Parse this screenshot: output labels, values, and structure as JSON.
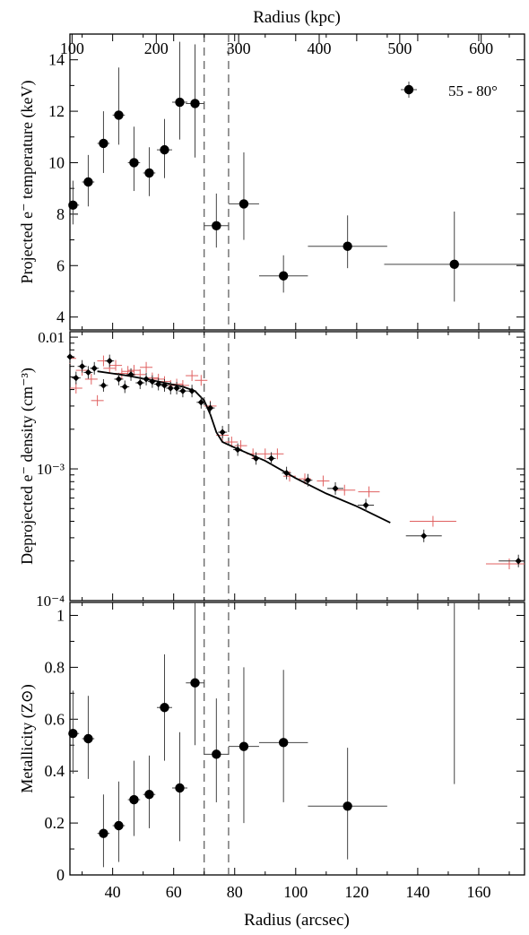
{
  "chart_data": {
    "type": "scatter",
    "shared_x": {
      "label": "Radius (arcsec)",
      "range": [
        26,
        175
      ],
      "ticks": [
        40,
        60,
        80,
        100,
        120,
        140,
        160
      ]
    },
    "top_axis": {
      "label": "Radius (kpc)",
      "ticks": [
        {
          "kpc": 100,
          "arcsec": 26.7
        },
        {
          "kpc": 200,
          "arcsec": 54.3
        },
        {
          "kpc": 300,
          "arcsec": 81.3
        },
        {
          "kpc": 400,
          "arcsec": 107.7
        },
        {
          "kpc": 500,
          "arcsec": 134.1
        },
        {
          "kpc": 600,
          "arcsec": 160.8
        }
      ]
    },
    "vertical_dashed_lines": [
      70,
      78
    ],
    "panels": [
      {
        "id": "temperature",
        "ylabel": "Projected e⁻ temperature (keV)",
        "yscale": "linear",
        "ylim": [
          3.5,
          15
        ],
        "yticks": [
          4,
          6,
          8,
          10,
          12,
          14
        ],
        "legend": {
          "label": "55 - 80°",
          "position": "top-right"
        },
        "points": [
          {
            "x": 27,
            "xerr": 2,
            "y": 8.35,
            "ylo": 7.6,
            "yhi": 9.3
          },
          {
            "x": 32,
            "xerr": 2,
            "y": 9.25,
            "ylo": 8.3,
            "yhi": 10.3
          },
          {
            "x": 37,
            "xerr": 2,
            "y": 10.75,
            "ylo": 9.6,
            "yhi": 12.0
          },
          {
            "x": 42,
            "xerr": 2,
            "y": 11.85,
            "ylo": 10.7,
            "yhi": 13.7
          },
          {
            "x": 47,
            "xerr": 2,
            "y": 10.0,
            "ylo": 8.9,
            "yhi": 11.4
          },
          {
            "x": 52,
            "xerr": 2,
            "y": 9.6,
            "ylo": 8.7,
            "yhi": 10.6
          },
          {
            "x": 57,
            "xerr": 2.5,
            "y": 10.5,
            "ylo": 9.4,
            "yhi": 11.7
          },
          {
            "x": 62,
            "xerr": 2.5,
            "y": 12.35,
            "ylo": 10.9,
            "yhi": 14.7
          },
          {
            "x": 67,
            "xerr": 3,
            "y": 12.3,
            "ylo": 10.2,
            "yhi": 14.6
          },
          {
            "x": 74,
            "xerr": 4,
            "y": 7.55,
            "ylo": 6.7,
            "yhi": 8.8
          },
          {
            "x": 83,
            "xerr": 5,
            "y": 8.4,
            "ylo": 7.0,
            "yhi": 10.4
          },
          {
            "x": 96,
            "xerr": 8,
            "y": 5.6,
            "ylo": 4.95,
            "yhi": 6.4
          },
          {
            "x": 117,
            "xerr": 13,
            "y": 6.75,
            "ylo": 5.9,
            "yhi": 7.95
          },
          {
            "x": 152,
            "xerr": 23,
            "y": 6.05,
            "ylo": 4.6,
            "yhi": 8.1
          }
        ]
      },
      {
        "id": "density",
        "ylabel": "Deprojected e⁻ density (cm⁻³)",
        "yscale": "log",
        "ylim": [
          0.0001,
          0.011
        ],
        "ytick_labels": [
          "0.01",
          "10⁻³",
          "10⁻⁴"
        ],
        "model_curve": [
          {
            "x": 35,
            "y": 0.0055
          },
          {
            "x": 45,
            "y": 0.0051
          },
          {
            "x": 55,
            "y": 0.0046
          },
          {
            "x": 63,
            "y": 0.0042
          },
          {
            "x": 67,
            "y": 0.0039
          },
          {
            "x": 70,
            "y": 0.0033
          },
          {
            "x": 72,
            "y": 0.0026
          },
          {
            "x": 74,
            "y": 0.0019
          },
          {
            "x": 76,
            "y": 0.0016
          },
          {
            "x": 80,
            "y": 0.00145
          },
          {
            "x": 90,
            "y": 0.00115
          },
          {
            "x": 100,
            "y": 0.00085
          },
          {
            "x": 110,
            "y": 0.00065
          },
          {
            "x": 120,
            "y": 0.00052
          },
          {
            "x": 131,
            "y": 0.00039
          }
        ],
        "black_points": [
          {
            "x": 26,
            "y": 0.0071
          },
          {
            "x": 28,
            "y": 0.0049
          },
          {
            "x": 30,
            "y": 0.006
          },
          {
            "x": 32,
            "y": 0.0054
          },
          {
            "x": 34,
            "y": 0.0058
          },
          {
            "x": 37,
            "y": 0.0043
          },
          {
            "x": 39,
            "y": 0.0066
          },
          {
            "x": 42,
            "y": 0.0048
          },
          {
            "x": 44,
            "y": 0.0042
          },
          {
            "x": 46,
            "y": 0.0052
          },
          {
            "x": 49,
            "y": 0.0045
          },
          {
            "x": 51,
            "y": 0.0048
          },
          {
            "x": 53,
            "y": 0.0046
          },
          {
            "x": 55,
            "y": 0.0044
          },
          {
            "x": 57,
            "y": 0.0043
          },
          {
            "x": 59,
            "y": 0.0041
          },
          {
            "x": 61,
            "y": 0.0041
          },
          {
            "x": 63,
            "y": 0.0039
          },
          {
            "x": 66,
            "y": 0.0039
          },
          {
            "x": 69,
            "y": 0.0032
          },
          {
            "x": 72,
            "y": 0.0029
          },
          {
            "x": 76,
            "y": 0.0019
          },
          {
            "x": 81,
            "y": 0.0014
          },
          {
            "x": 87,
            "y": 0.0012
          },
          {
            "x": 92,
            "y": 0.0012
          },
          {
            "x": 97,
            "y": 0.00093
          },
          {
            "x": 104,
            "y": 0.00082
          },
          {
            "x": 113,
            "y": 0.00071
          },
          {
            "x": 123,
            "y": 0.00053
          },
          {
            "x": 142,
            "y": 0.00031
          },
          {
            "x": 173,
            "y": 0.0002
          }
        ],
        "red_points": [
          {
            "x": 26,
            "y": 0.0069
          },
          {
            "x": 28,
            "y": 0.0041
          },
          {
            "x": 30,
            "y": 0.0056
          },
          {
            "x": 33,
            "y": 0.0048
          },
          {
            "x": 35,
            "y": 0.0033
          },
          {
            "x": 37,
            "y": 0.0066
          },
          {
            "x": 39,
            "y": 0.0058
          },
          {
            "x": 41,
            "y": 0.0061
          },
          {
            "x": 43,
            "y": 0.0053
          },
          {
            "x": 45,
            "y": 0.0055
          },
          {
            "x": 47,
            "y": 0.0056
          },
          {
            "x": 49,
            "y": 0.0052
          },
          {
            "x": 51,
            "y": 0.0059
          },
          {
            "x": 53,
            "y": 0.0049
          },
          {
            "x": 55,
            "y": 0.0048
          },
          {
            "x": 57,
            "y": 0.0046
          },
          {
            "x": 59,
            "y": 0.0043
          },
          {
            "x": 61,
            "y": 0.0044
          },
          {
            "x": 63,
            "y": 0.0043
          },
          {
            "x": 66,
            "y": 0.0051
          },
          {
            "x": 69,
            "y": 0.0047
          },
          {
            "x": 72,
            "y": 0.003
          },
          {
            "x": 76,
            "y": 0.0018
          },
          {
            "x": 79,
            "y": 0.0016
          },
          {
            "x": 82,
            "y": 0.0015
          },
          {
            "x": 86,
            "y": 0.0013
          },
          {
            "x": 90,
            "y": 0.0013
          },
          {
            "x": 94,
            "y": 0.0013
          },
          {
            "x": 98,
            "y": 0.00088
          },
          {
            "x": 103,
            "y": 0.00084
          },
          {
            "x": 109,
            "y": 0.00081
          },
          {
            "x": 116,
            "y": 0.00069
          },
          {
            "x": 124,
            "y": 0.00067
          },
          {
            "x": 145,
            "y": 0.0004
          },
          {
            "x": 170,
            "y": 0.00019
          }
        ]
      },
      {
        "id": "metallicity",
        "ylabel": "Metallicity (Z⊙)",
        "yscale": "linear",
        "ylim": [
          0,
          1.05
        ],
        "yticks": [
          0,
          0.2,
          0.4,
          0.6,
          0.8,
          1
        ],
        "ytick_labels": [
          "0",
          "0.2",
          "0.4",
          "0.6",
          "0.8",
          "1"
        ],
        "points": [
          {
            "x": 27,
            "xerr": 2,
            "y": 0.545,
            "ylo": 0.39,
            "yhi": 0.71
          },
          {
            "x": 32,
            "xerr": 2,
            "y": 0.525,
            "ylo": 0.37,
            "yhi": 0.69
          },
          {
            "x": 37,
            "xerr": 2,
            "y": 0.16,
            "ylo": 0.03,
            "yhi": 0.31
          },
          {
            "x": 42,
            "xerr": 2,
            "y": 0.19,
            "ylo": 0.05,
            "yhi": 0.36
          },
          {
            "x": 47,
            "xerr": 2,
            "y": 0.29,
            "ylo": 0.15,
            "yhi": 0.44
          },
          {
            "x": 52,
            "xerr": 2,
            "y": 0.31,
            "ylo": 0.18,
            "yhi": 0.46
          },
          {
            "x": 57,
            "xerr": 2.5,
            "y": 0.645,
            "ylo": 0.44,
            "yhi": 0.85
          },
          {
            "x": 62,
            "xerr": 2.5,
            "y": 0.335,
            "ylo": 0.13,
            "yhi": 0.55
          },
          {
            "x": 67,
            "xerr": 3,
            "y": 0.74,
            "ylo": 0.5,
            "yhi": 1.05
          },
          {
            "x": 74,
            "xerr": 4,
            "y": 0.465,
            "ylo": 0.28,
            "yhi": 0.68
          },
          {
            "x": 83,
            "xerr": 5,
            "y": 0.495,
            "ylo": 0.2,
            "yhi": 0.8
          },
          {
            "x": 96,
            "xerr": 8,
            "y": 0.51,
            "ylo": 0.28,
            "yhi": 0.79
          },
          {
            "x": 117,
            "xerr": 13,
            "y": 0.265,
            "ylo": 0.06,
            "yhi": 0.49
          },
          {
            "x": 152,
            "xerr": 0,
            "y": null,
            "ylo": 0.35,
            "yhi": 1.05
          }
        ]
      }
    ]
  }
}
